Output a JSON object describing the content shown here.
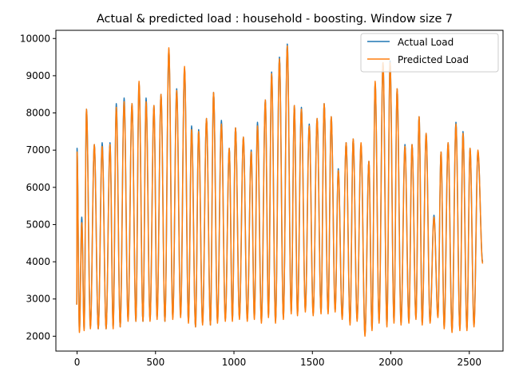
{
  "chart_data": {
    "type": "line",
    "title": "Actual & predicted load : household - boosting. Window size 7",
    "xlabel": "",
    "ylabel": "",
    "xlim": [
      -135,
      2715
    ],
    "ylim": [
      1600,
      10220
    ],
    "x_ticks": [
      0,
      500,
      1000,
      1500,
      2000,
      2500
    ],
    "x_tick_labels": [
      "0",
      "500",
      "1000",
      "1500",
      "2000",
      "2500"
    ],
    "y_ticks": [
      2000,
      3000,
      4000,
      5000,
      6000,
      7000,
      8000,
      9000,
      10000
    ],
    "y_tick_labels": [
      "2000",
      "3000",
      "4000",
      "5000",
      "6000",
      "7000",
      "8000",
      "9000",
      "10000"
    ],
    "grid": false,
    "legend_position": "top-right",
    "series": [
      {
        "name": "Actual Load",
        "color": "#1f77b4"
      },
      {
        "name": "Predicted Load",
        "color": "#ff7f0e"
      }
    ],
    "peaks": {
      "x": [
        0,
        30,
        60,
        110,
        160,
        210,
        250,
        300,
        350,
        395,
        440,
        490,
        535,
        585,
        635,
        685,
        730,
        775,
        825,
        870,
        920,
        970,
        1010,
        1060,
        1110,
        1150,
        1200,
        1240,
        1290,
        1340,
        1385,
        1430,
        1480,
        1530,
        1575,
        1620,
        1665,
        1715,
        1760,
        1810,
        1860,
        1900,
        1950,
        1995,
        2040,
        2090,
        2135,
        2180,
        2225,
        2275,
        2320,
        2365,
        2415,
        2460,
        2505,
        2555
      ],
      "actual": [
        7050,
        5200,
        8100,
        7150,
        7200,
        7200,
        8250,
        8400,
        8250,
        8800,
        8400,
        8200,
        8500,
        9700,
        8650,
        9200,
        7650,
        7550,
        7850,
        8550,
        7800,
        7050,
        7600,
        7350,
        7000,
        7750,
        8350,
        9100,
        9500,
        9850,
        8200,
        8150,
        7700,
        7850,
        8250,
        7900,
        6500,
        7200,
        7300,
        7150,
        6700,
        8800,
        9350,
        9400,
        8650,
        7150,
        7150,
        7900,
        7450,
        5250,
        6950,
        7200,
        7750,
        7500,
        7050,
        6950
      ],
      "predicted": [
        6950,
        5050,
        8100,
        7150,
        7100,
        7150,
        8150,
        8300,
        8250,
        8850,
        8300,
        8200,
        8500,
        9750,
        8600,
        9250,
        7550,
        7500,
        7850,
        8550,
        7700,
        7050,
        7600,
        7350,
        6950,
        7650,
        8350,
        9050,
        9450,
        9800,
        8200,
        8100,
        7650,
        7850,
        8250,
        7900,
        6450,
        7200,
        7300,
        7200,
        6700,
        8850,
        9350,
        9350,
        8650,
        7100,
        7150,
        7900,
        7450,
        5200,
        6950,
        7200,
        7700,
        7450,
        7050,
        7000
      ]
    },
    "troughs": {
      "x": [
        15,
        45,
        85,
        135,
        185,
        230,
        275,
        325,
        375,
        420,
        465,
        510,
        560,
        610,
        660,
        710,
        755,
        800,
        850,
        895,
        945,
        990,
        1035,
        1085,
        1130,
        1175,
        1220,
        1265,
        1315,
        1365,
        1405,
        1455,
        1505,
        1555,
        1600,
        1645,
        1690,
        1740,
        1785,
        1835,
        1880,
        1925,
        1975,
        2020,
        2065,
        2115,
        2160,
        2200,
        2250,
        2300,
        2340,
        2390,
        2440,
        2485,
        2530,
        2585
      ],
      "actual": [
        2150,
        2200,
        2250,
        2200,
        2200,
        2250,
        2250,
        2450,
        2400,
        2400,
        2450,
        2500,
        2400,
        2500,
        2550,
        2400,
        2250,
        2350,
        2300,
        2400,
        2450,
        2450,
        2500,
        2450,
        2500,
        2400,
        2550,
        2400,
        2500,
        2650,
        2600,
        2700,
        2600,
        2650,
        2650,
        2700,
        2500,
        2350,
        2450,
        2050,
        2200,
        2400,
        2300,
        2400,
        2350,
        2400,
        2500,
        2350,
        2400,
        2550,
        2250,
        2150,
        2200,
        2200,
        2300,
        4000
      ],
      "predicted": [
        2100,
        2150,
        2200,
        2200,
        2200,
        2200,
        2250,
        2400,
        2400,
        2400,
        2400,
        2450,
        2400,
        2450,
        2500,
        2350,
        2250,
        2300,
        2300,
        2350,
        2400,
        2400,
        2450,
        2400,
        2450,
        2350,
        2500,
        2350,
        2450,
        2600,
        2550,
        2650,
        2550,
        2600,
        2600,
        2650,
        2450,
        2300,
        2400,
        2000,
        2150,
        2350,
        2250,
        2350,
        2300,
        2350,
        2450,
        2300,
        2350,
        2500,
        2200,
        2100,
        2150,
        2150,
        2250,
        3950
      ]
    }
  }
}
